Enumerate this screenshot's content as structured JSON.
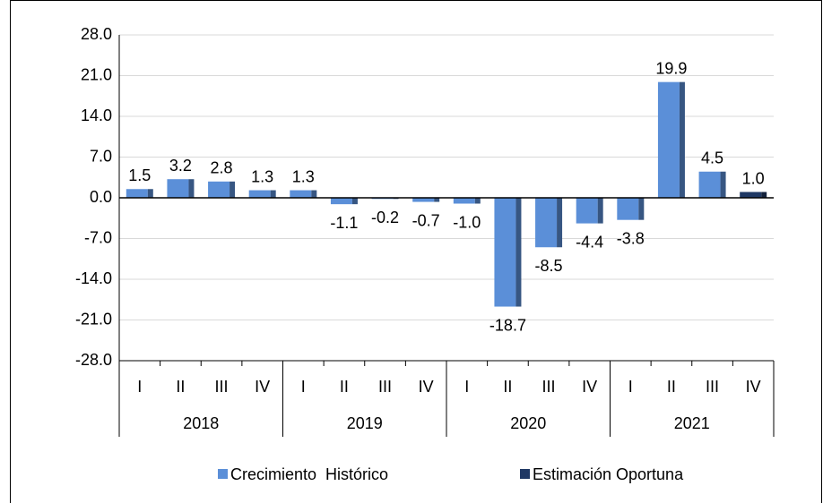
{
  "chart_data": {
    "type": "bar",
    "categories": [
      "I",
      "II",
      "III",
      "IV",
      "I",
      "II",
      "III",
      "IV",
      "I",
      "II",
      "III",
      "IV",
      "I",
      "II",
      "III",
      "IV"
    ],
    "groups": [
      "2018",
      "2019",
      "2020",
      "2021"
    ],
    "series": [
      {
        "name": "Crecimiento  Histórico",
        "color": "#5b8fd8",
        "values": [
          1.5,
          3.2,
          2.8,
          1.3,
          1.3,
          -1.1,
          -0.2,
          -0.7,
          -1.0,
          -18.7,
          -8.5,
          -4.4,
          -3.8,
          19.9,
          4.5,
          null
        ],
        "value_labels": [
          "1.5",
          "3.2",
          "2.8",
          "1.3",
          "1.3",
          "-1.1",
          "-0.2",
          "-0.7",
          "-1.0",
          "-18.7",
          "-8.5",
          "-4.4",
          "-3.8",
          "19.9",
          "4.5",
          null
        ]
      },
      {
        "name": "Estimación Oportuna",
        "color": "#1f3864",
        "values": [
          null,
          null,
          null,
          null,
          null,
          null,
          null,
          null,
          null,
          null,
          null,
          null,
          null,
          null,
          null,
          1.0
        ],
        "value_labels": [
          null,
          null,
          null,
          null,
          null,
          null,
          null,
          null,
          null,
          null,
          null,
          null,
          null,
          null,
          null,
          "1.0"
        ]
      }
    ],
    "ylim": [
      -28,
      28
    ],
    "yticks": [
      {
        "value": -28,
        "label": "-28.0"
      },
      {
        "value": -21,
        "label": "-21.0"
      },
      {
        "value": -14,
        "label": "-14.0"
      },
      {
        "value": -7,
        "label": "-7.0"
      },
      {
        "value": 0,
        "label": "0.0"
      },
      {
        "value": 7,
        "label": "7.0"
      },
      {
        "value": 14,
        "label": "14.0"
      },
      {
        "value": 21,
        "label": "21.0"
      },
      {
        "value": 28,
        "label": "28.0"
      }
    ],
    "grid": true
  }
}
